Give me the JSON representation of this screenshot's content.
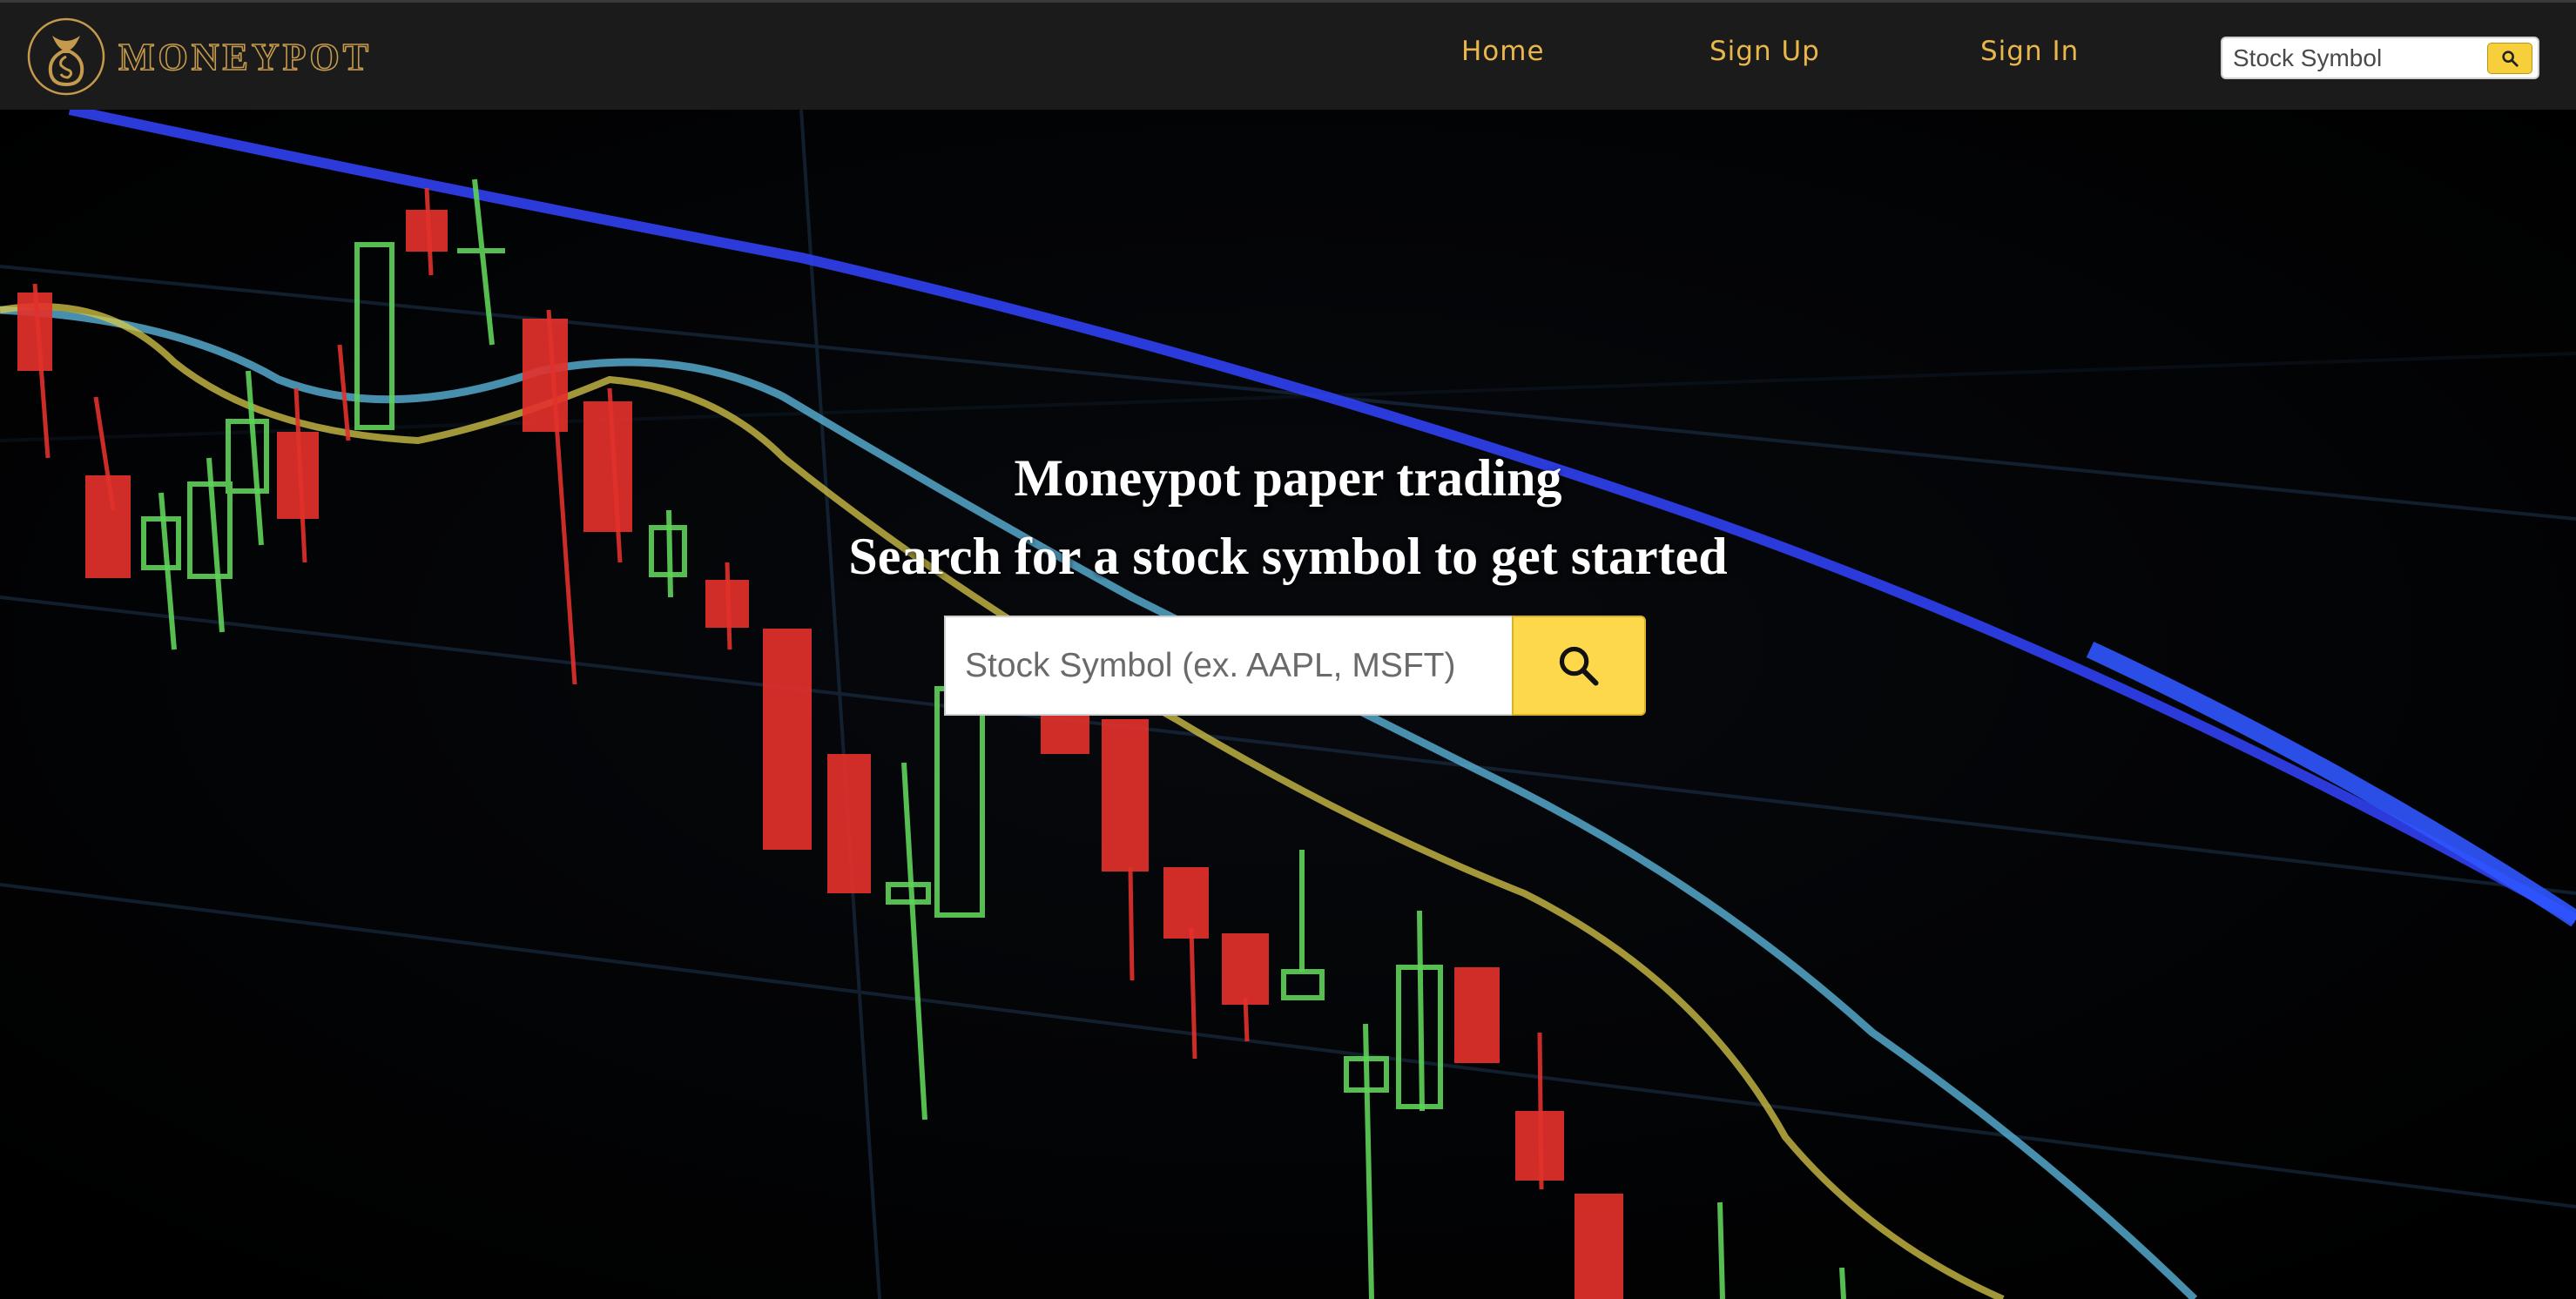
{
  "brand": {
    "name": "MONEYPOT",
    "logo_icon": "moneybag-logo-icon",
    "accent_color": "#c59a4c"
  },
  "nav": {
    "links": [
      {
        "label": "Home"
      },
      {
        "label": "Sign Up"
      },
      {
        "label": "Sign In"
      }
    ],
    "search": {
      "placeholder": "Stock Symbol",
      "button_icon": "search-icon"
    },
    "link_color": "#e9b64a"
  },
  "hero": {
    "title": "Moneypot paper trading",
    "subtitle": "Search for a stock symbol to get started",
    "search": {
      "placeholder": "Stock Symbol (ex. AAPL, MSFT)",
      "button_icon": "search-icon",
      "button_color": "#fdd84b"
    },
    "background": "candlestick-chart-photo"
  }
}
